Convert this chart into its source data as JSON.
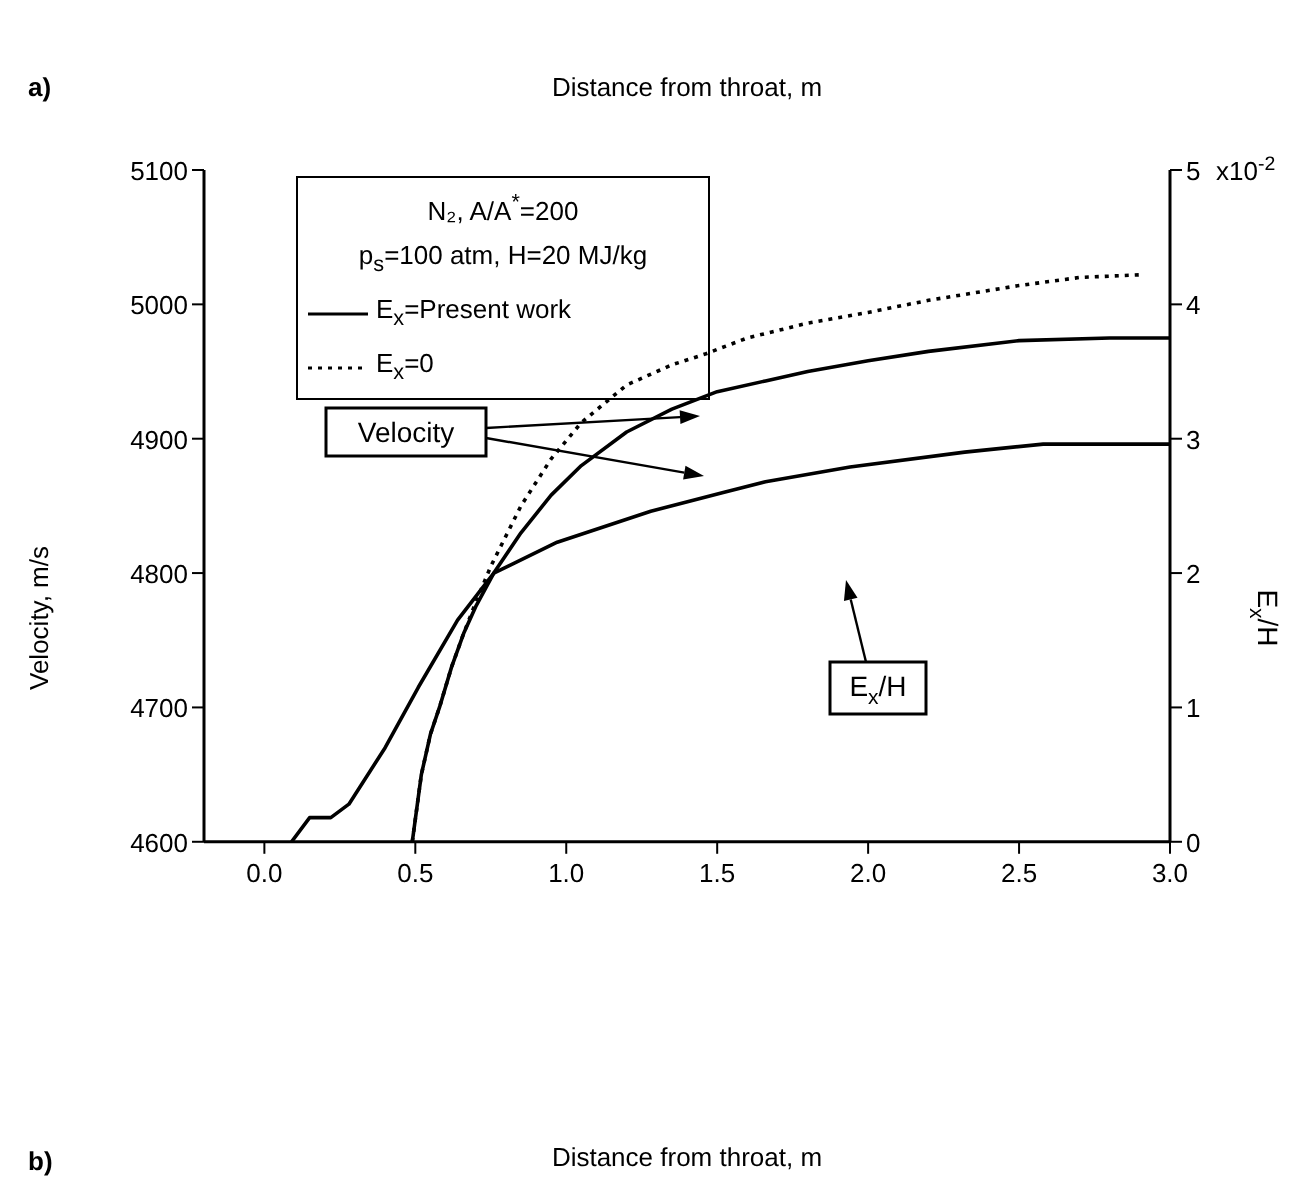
{
  "chart_data": {
    "type": "line",
    "ylabel": "Velocity, m/s",
    "y2label": "E$_{x}$/H",
    "legend_title": "N₂,   A/A$^{*}$=200\np$_{s}$=100 atm, H=20 MJ/kg",
    "legend": "top left",
    "grid": false,
    "marker": "none",
    "xlim": [
      -0.2,
      3.0
    ],
    "xticks": [
      {
        "value": 0,
        "label": "0.0"
      },
      0.5,
      {
        "value": 1,
        "label": "1.0"
      },
      1.5,
      {
        "value": 2,
        "label": "2.0"
      },
      2.5,
      {
        "value": 3,
        "label": "3.0"
      }
    ],
    "ylim": [
      4600,
      5100
    ],
    "yticks": [
      4600,
      4700,
      4800,
      4900,
      5000,
      5100
    ],
    "y2lim": [
      0,
      5
    ],
    "y2ticks": [
      0,
      1,
      2,
      3,
      4,
      5
    ],
    "series": [
      {
        "name": "E$_{x}$=Present work",
        "color": "#000000",
        "line_style": "solid",
        "x": [
          0.49,
          0.52,
          0.55,
          0.58,
          0.62,
          0.66,
          0.7,
          0.76,
          0.85,
          0.95,
          1.05,
          1.2,
          1.35,
          1.5,
          1.66,
          1.8,
          2.0,
          2.2,
          2.5,
          2.8,
          3.0
        ],
        "values": [
          4600,
          4650,
          4680,
          4700,
          4730,
          4755,
          4775,
          4800,
          4830,
          4858,
          4880,
          4905,
          4922,
          4935,
          4943,
          4950,
          4958,
          4965,
          4973,
          4975,
          4975
        ]
      },
      {
        "name": "E$_{x}$=0",
        "color": "#000000",
        "line_style": "dotted",
        "x": [
          0.49,
          0.52,
          0.55,
          0.58,
          0.62,
          0.66,
          0.7,
          0.75,
          0.85,
          0.95,
          1.05,
          1.2,
          1.35,
          1.46,
          1.6,
          1.8,
          2.0,
          2.2,
          2.5,
          2.7,
          2.9
        ],
        "values": [
          4600,
          4650,
          4680,
          4700,
          4730,
          4755,
          4778,
          4805,
          4850,
          4885,
          4912,
          4940,
          4955,
          4963,
          4975,
          4986,
          4994,
          5003,
          5014,
          5020,
          5022
        ]
      },
      {
        "color": "#000000",
        "line_style": "solid",
        "axis": "y2",
        "x": [
          0.09,
          0.15,
          0.22,
          0.28,
          0.4,
          0.51,
          0.64,
          0.76,
          0.97,
          1.28,
          1.52,
          1.66,
          1.94,
          2.32,
          2.58,
          3.0
        ],
        "values": [
          0,
          0.18,
          0.18,
          0.28,
          0.7,
          1.15,
          1.65,
          2.0,
          2.23,
          2.46,
          2.6,
          2.68,
          2.79,
          2.9,
          2.96,
          2.96
        ]
      }
    ],
    "annotations": [
      "a)",
      "Distance from throat, m",
      "b)",
      "Velocity",
      "E$_{x}$/H",
      "x10$^{-2}$",
      "Distance from throat, m"
    ]
  }
}
